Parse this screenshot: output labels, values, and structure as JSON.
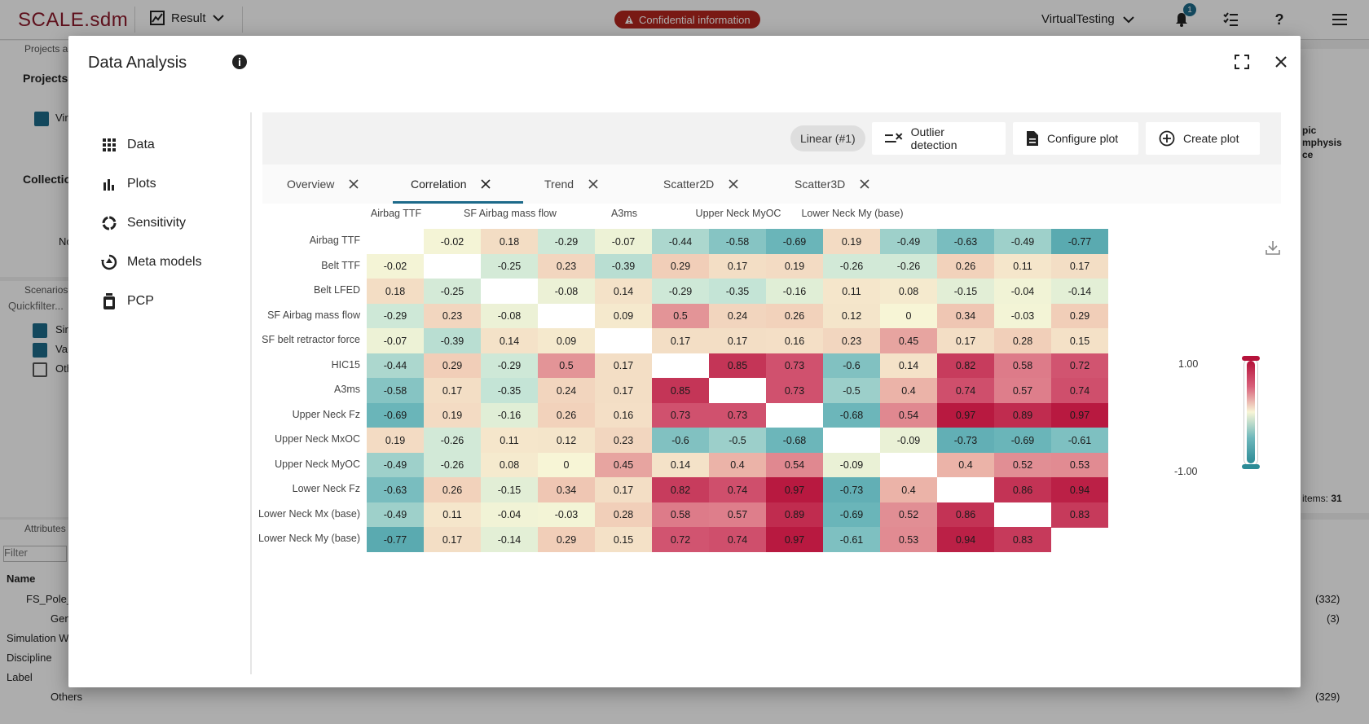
{
  "app": {
    "logo": "SCALE.sdm",
    "result_label": "Result",
    "confidential_label": "Confidential information",
    "workspace_label": "VirtualTesting",
    "notification_count": "1"
  },
  "background": {
    "projects_header": "Projects a",
    "projects_title": "Projects",
    "project_item": "Vir",
    "collections_title": "Collectio",
    "collections_empty": "No",
    "scenarios_header": "Scenarios",
    "quickfilter": "Quickfilter...",
    "scenario_items": [
      "Sir",
      "Va",
      "Oth"
    ],
    "attributes_header": "Attributes",
    "filter_placeholder": "Filter",
    "name_column": "Name",
    "tree_rows": [
      "FS_Pole_",
      "Gen",
      "Simulation W",
      "Discipline",
      "Label",
      "Others"
    ],
    "tree_counts": [
      "(332)",
      "(3)",
      "(329)"
    ],
    "right_panel_text": [
      "pic",
      "mphysis",
      "ce"
    ],
    "items_label": "items:",
    "items_count": "31"
  },
  "dialog": {
    "title": "Data Analysis",
    "nav": [
      {
        "label": "Data",
        "icon": "grid-icon"
      },
      {
        "label": "Plots",
        "icon": "bar-chart-icon"
      },
      {
        "label": "Sensitivity",
        "icon": "sensitivity-icon"
      },
      {
        "label": "Meta models",
        "icon": "meta-model-icon"
      },
      {
        "label": "PCP",
        "icon": "pcp-icon"
      }
    ],
    "toolbar": {
      "chip_label": "Linear (#1)",
      "outlier_label": "Outlier detection",
      "configure_label": "Configure plot",
      "create_label": "Create plot"
    },
    "tabs": [
      "Overview",
      "Correlation",
      "Trend",
      "Scatter2D",
      "Scatter3D"
    ],
    "active_tab": "Correlation"
  },
  "colors": {
    "accent": "#1d6a8a",
    "positive_max": "#b5123a",
    "negative_max": "#2c8b96",
    "neutral": "#f7f5d6",
    "confidential": "#b3261e"
  },
  "chart_data": {
    "type": "heatmap",
    "title": "",
    "top_labels": [
      "Airbag TTF",
      "SF Airbag mass flow",
      "A3ms",
      "Upper Neck MyOC",
      "Lower Neck My (base)"
    ],
    "variables": [
      "Airbag TTF",
      "Belt TTF",
      "Belt LFED",
      "SF Airbag mass flow",
      "SF belt retractor force",
      "HIC15",
      "A3ms",
      "Upper Neck Fz",
      "Upper Neck MxOC",
      "Upper Neck MyOC",
      "Lower Neck Fz",
      "Lower Neck Mx (base)",
      "Lower Neck My (base)"
    ],
    "matrix": [
      [
        null,
        -0.02,
        0.18,
        -0.29,
        -0.07,
        -0.44,
        -0.58,
        -0.69,
        0.19,
        -0.49,
        -0.63,
        -0.49,
        -0.77
      ],
      [
        -0.02,
        null,
        -0.25,
        0.23,
        -0.39,
        0.29,
        0.17,
        0.19,
        -0.26,
        -0.26,
        0.26,
        0.11,
        0.17
      ],
      [
        0.18,
        -0.25,
        null,
        -0.08,
        0.14,
        -0.29,
        -0.35,
        -0.16,
        0.11,
        0.08,
        -0.15,
        -0.04,
        -0.14
      ],
      [
        -0.29,
        0.23,
        -0.08,
        null,
        0.09,
        0.5,
        0.24,
        0.26,
        0.12,
        0,
        0.34,
        -0.03,
        0.29
      ],
      [
        -0.07,
        -0.39,
        0.14,
        0.09,
        null,
        0.17,
        0.17,
        0.16,
        0.23,
        0.45,
        0.17,
        0.28,
        0.15
      ],
      [
        -0.44,
        0.29,
        -0.29,
        0.5,
        0.17,
        null,
        0.85,
        0.73,
        -0.6,
        0.14,
        0.82,
        0.58,
        0.72
      ],
      [
        -0.58,
        0.17,
        -0.35,
        0.24,
        0.17,
        0.85,
        null,
        0.73,
        -0.5,
        0.4,
        0.74,
        0.57,
        0.74
      ],
      [
        -0.69,
        0.19,
        -0.16,
        0.26,
        0.16,
        0.73,
        0.73,
        null,
        -0.68,
        0.54,
        0.97,
        0.89,
        0.97
      ],
      [
        0.19,
        -0.26,
        0.11,
        0.12,
        0.23,
        -0.6,
        -0.5,
        -0.68,
        null,
        -0.09,
        -0.73,
        -0.69,
        -0.61
      ],
      [
        -0.49,
        -0.26,
        0.08,
        0,
        0.45,
        0.14,
        0.4,
        0.54,
        -0.09,
        null,
        0.4,
        0.52,
        0.53
      ],
      [
        -0.63,
        0.26,
        -0.15,
        0.34,
        0.17,
        0.82,
        0.74,
        0.97,
        -0.73,
        0.4,
        null,
        0.86,
        0.94
      ],
      [
        -0.49,
        0.11,
        -0.04,
        -0.03,
        0.28,
        0.58,
        0.57,
        0.89,
        -0.69,
        0.52,
        0.86,
        null,
        0.83
      ],
      [
        -0.77,
        0.17,
        -0.14,
        0.29,
        0.15,
        0.72,
        0.74,
        0.97,
        -0.61,
        0.53,
        0.94,
        0.83,
        null
      ]
    ],
    "scale_min": -1.0,
    "scale_max": 1.0,
    "legend_labels": [
      "1.00",
      "-1.00"
    ]
  }
}
